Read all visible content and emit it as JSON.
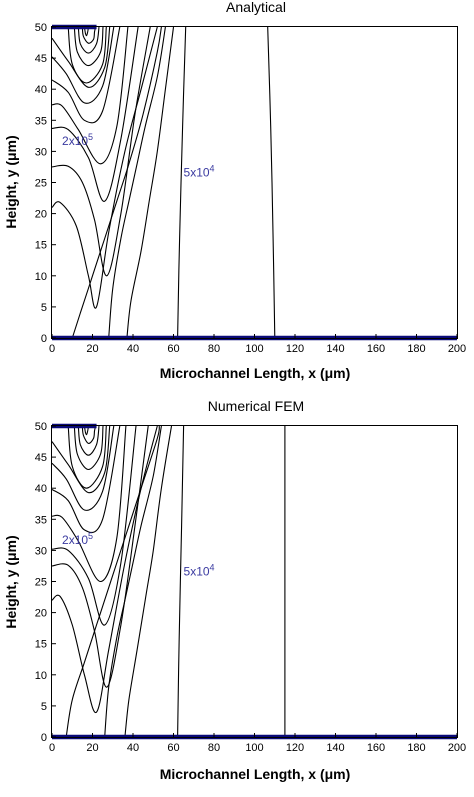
{
  "chart_data": [
    {
      "type": "contour",
      "title": "Analytical",
      "xlabel": "Microchannel Length, x (μm)",
      "ylabel": "Height, y (μm)",
      "xlim": [
        0,
        200
      ],
      "ylim": [
        0,
        50
      ],
      "xticks": [
        0,
        20,
        40,
        60,
        80,
        100,
        120,
        140,
        160,
        180,
        200
      ],
      "yticks": [
        0,
        5,
        10,
        15,
        20,
        25,
        30,
        35,
        40,
        45,
        50
      ],
      "grid": false,
      "walls": [
        {
          "x": [
            0,
            200
          ],
          "y": [
            0,
            0
          ]
        },
        {
          "x": [
            0,
            22
          ],
          "y": [
            50,
            50
          ]
        }
      ],
      "contour_labels": [
        {
          "text": "2x10",
          "sup": "5",
          "x": 1,
          "y": 31
        },
        {
          "text": "5x10",
          "sup": "4",
          "x": 61,
          "y": 26
        }
      ],
      "contours": [
        {
          "x": [
            16,
            16.5,
            17,
            17.5,
            18
          ],
          "y": [
            50,
            49.0,
            48.6,
            49.0,
            50
          ]
        },
        {
          "x": [
            15,
            15.5,
            18,
            20.5,
            21,
            21.5
          ],
          "y": [
            50,
            48.5,
            47.4,
            48.0,
            49.2,
            50
          ]
        },
        {
          "x": [
            13,
            14,
            18,
            22,
            23.2
          ],
          "y": [
            50,
            47.3,
            45.8,
            47.3,
            50
          ]
        },
        {
          "x": [
            11,
            12.5,
            18,
            24,
            25.2
          ],
          "y": [
            50,
            46.0,
            43.8,
            46.0,
            50
          ]
        },
        {
          "x": [
            8,
            10,
            17,
            25,
            26.8
          ],
          "y": [
            50,
            44.0,
            41.0,
            44.0,
            50
          ]
        },
        {
          "x": [
            0,
            8,
            18,
            26,
            28.5
          ],
          "y": [
            48.2,
            44.5,
            40.3,
            43.5,
            50
          ]
        },
        {
          "x": [
            0,
            7,
            16,
            25,
            30.5
          ],
          "y": [
            45.2,
            42.5,
            37.8,
            40.5,
            50
          ]
        },
        {
          "x": [
            0,
            8,
            16,
            25,
            33.5
          ],
          "y": [
            41.5,
            39.5,
            35.0,
            36.5,
            50
          ]
        },
        {
          "x": [
            0,
            5,
            13,
            24,
            32,
            37.5
          ],
          "y": [
            37.5,
            37.3,
            33.5,
            28.0,
            34.0,
            50
          ]
        },
        {
          "x": [
            0,
            8,
            18,
            26,
            34,
            42.5
          ],
          "y": [
            33.7,
            33.5,
            29.0,
            22.0,
            32.0,
            50
          ]
        },
        {
          "x": [
            0,
            8,
            15,
            21,
            27,
            34,
            41,
            48.5
          ],
          "y": [
            27.5,
            27.6,
            25.0,
            19.0,
            10.0,
            20.0,
            36.0,
            50
          ]
        },
        {
          "x": [
            0,
            4,
            12,
            18,
            22,
            28,
            36,
            44,
            52
          ],
          "y": [
            21.0,
            21.8,
            18.0,
            10.0,
            5.0,
            17.0,
            30.0,
            40.0,
            50
          ]
        },
        {
          "x": [
            10,
            14,
            20,
            26,
            32,
            38,
            45,
            52,
            54
          ],
          "y": [
            0,
            4.0,
            10.0,
            16.0,
            22.0,
            28.0,
            36.0,
            46.0,
            50
          ]
        },
        {
          "x": [
            28,
            30,
            34,
            38,
            42,
            46,
            52,
            56
          ],
          "y": [
            0,
            8.0,
            16.0,
            22.0,
            28.0,
            34.0,
            42.0,
            50
          ]
        },
        {
          "x": [
            37,
            39,
            44,
            48,
            52,
            56,
            60
          ],
          "y": [
            0,
            6.0,
            14.0,
            22.0,
            30.0,
            40.0,
            50
          ]
        },
        {
          "x": [
            62,
            63,
            64.5,
            66
          ],
          "y": [
            0,
            16.0,
            34.0,
            50
          ]
        },
        {
          "x": [
            110,
            109.2,
            108,
            106.5
          ],
          "y": [
            0,
            16.0,
            34.0,
            50
          ]
        }
      ]
    },
    {
      "type": "contour",
      "title": "Numerical FEM",
      "xlabel": "Microchannel Length, x (μm)",
      "ylabel": "Height, y (μm)",
      "xlim": [
        0,
        200
      ],
      "ylim": [
        0,
        50
      ],
      "xticks": [
        0,
        20,
        40,
        60,
        80,
        100,
        120,
        140,
        160,
        180,
        200
      ],
      "yticks": [
        0,
        5,
        10,
        15,
        20,
        25,
        30,
        35,
        40,
        45,
        50
      ],
      "grid": false,
      "walls": [
        {
          "x": [
            0,
            200
          ],
          "y": [
            0,
            0
          ]
        },
        {
          "x": [
            0,
            22
          ],
          "y": [
            50,
            50
          ]
        }
      ],
      "contour_labels": [
        {
          "text": "2x10",
          "sup": "5",
          "x": 1,
          "y": 31
        },
        {
          "text": "5x10",
          "sup": "4",
          "x": 61,
          "y": 26
        }
      ],
      "contours": [
        {
          "x": [
            16,
            16.5,
            17,
            17.5,
            18
          ],
          "y": [
            50,
            49.0,
            48.6,
            49.0,
            50
          ]
        },
        {
          "x": [
            15,
            15.5,
            18,
            20.5,
            21,
            21.5
          ],
          "y": [
            50,
            48.5,
            47.2,
            48.0,
            49.2,
            50
          ]
        },
        {
          "x": [
            13,
            14,
            18,
            22,
            23.2
          ],
          "y": [
            50,
            47.0,
            45.3,
            47.0,
            50
          ]
        },
        {
          "x": [
            11,
            12.5,
            18,
            24,
            25.2
          ],
          "y": [
            50,
            45.5,
            43.0,
            45.5,
            50
          ]
        },
        {
          "x": [
            8,
            10,
            17,
            25,
            26.8
          ],
          "y": [
            50,
            43.5,
            40.0,
            43.5,
            50
          ]
        },
        {
          "x": [
            0,
            8,
            18,
            26,
            28.5
          ],
          "y": [
            47.5,
            43.8,
            39.3,
            42.5,
            50
          ]
        },
        {
          "x": [
            0,
            7,
            16,
            25,
            30.5
          ],
          "y": [
            44.0,
            41.5,
            36.5,
            39.5,
            50
          ]
        },
        {
          "x": [
            0,
            8,
            16,
            25,
            33.5
          ],
          "y": [
            39.8,
            38.0,
            33.3,
            35.0,
            50
          ]
        },
        {
          "x": [
            0,
            5,
            13,
            24,
            32,
            36.5
          ],
          "y": [
            35.5,
            35.3,
            31.5,
            25.0,
            32.0,
            50
          ]
        },
        {
          "x": [
            0,
            8,
            18,
            26,
            34,
            41.5
          ],
          "y": [
            30.2,
            30.0,
            25.5,
            18.0,
            28.0,
            50
          ]
        },
        {
          "x": [
            0,
            8,
            15,
            21,
            27,
            34,
            41,
            47.5
          ],
          "y": [
            27.5,
            27.6,
            24.0,
            17.0,
            8.0,
            18.0,
            34.0,
            50
          ]
        },
        {
          "x": [
            0,
            4,
            10,
            16,
            22,
            28,
            36,
            44,
            52
          ],
          "y": [
            22.0,
            22.6,
            18.0,
            10.0,
            4.0,
            14.0,
            28.0,
            40.0,
            50
          ]
        },
        {
          "x": [
            7,
            10,
            16,
            22,
            28,
            36,
            44,
            52,
            53
          ],
          "y": [
            0,
            6.0,
            12.0,
            18.0,
            24.0,
            32.0,
            40.0,
            48.0,
            50
          ]
        },
        {
          "x": [
            26,
            28,
            32,
            36,
            40,
            44,
            50,
            54
          ],
          "y": [
            0,
            8.0,
            16.0,
            22.0,
            28.0,
            34.0,
            42.0,
            50
          ]
        },
        {
          "x": [
            36,
            38,
            42,
            46,
            50,
            54,
            59
          ],
          "y": [
            0,
            6.0,
            14.0,
            22.0,
            30.0,
            40.0,
            50
          ]
        },
        {
          "x": [
            62,
            62.8,
            64,
            65
          ],
          "y": [
            0,
            16.0,
            34.0,
            50
          ]
        },
        {
          "x": [
            115,
            115,
            115,
            115
          ],
          "y": [
            0,
            16.0,
            34.0,
            50
          ]
        }
      ]
    }
  ]
}
